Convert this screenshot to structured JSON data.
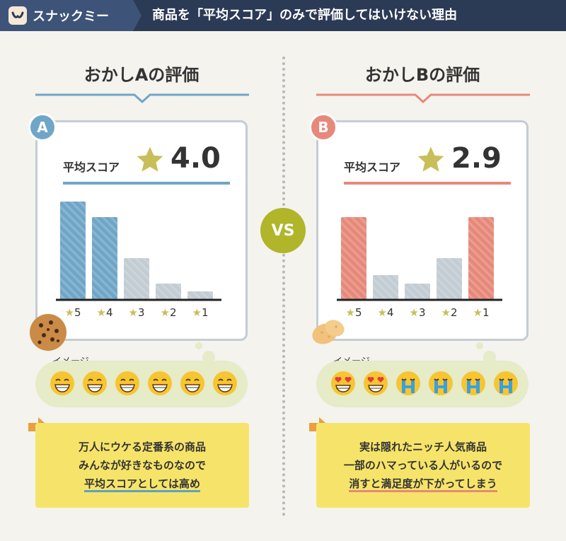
{
  "header": {
    "brand": "スナックミー",
    "title": "商品を「平均スコア」のみで評価してはいけない理由"
  },
  "colors": {
    "a": "#6fa6c8",
    "b": "#e7897a",
    "gray": "#c2ccd3",
    "star": "#c8bf5a",
    "vs": "#b0b52a"
  },
  "vs_label": "VS",
  "bubble_label": "イメージ",
  "panels": [
    {
      "title": "おかしAの評価",
      "badge": "A",
      "score_label": "平均スコア",
      "score": "4.0",
      "note": [
        "万人にウケる定番系の商品",
        "みんなが好きなものなので",
        "平均スコアとしては高め"
      ],
      "faces": [
        "grin",
        "grin",
        "grin",
        "grin",
        "grin",
        "grin"
      ]
    },
    {
      "title": "おかしBの評価",
      "badge": "B",
      "score_label": "平均スコア",
      "score": "2.9",
      "note": [
        "実は隠れたニッチ人気商品",
        "一部のハマっている人がいるので",
        "消すと満足度が下がってしまう"
      ],
      "faces": [
        "heart",
        "heart",
        "crying",
        "crying",
        "crying",
        "crying"
      ]
    }
  ],
  "chart_data": [
    {
      "type": "bar",
      "categories": [
        "★5",
        "★4",
        "★3",
        "★2",
        "★1"
      ],
      "values": [
        138,
        116,
        58,
        22,
        11
      ],
      "highlight": [
        true,
        true,
        false,
        false,
        false
      ]
    },
    {
      "type": "bar",
      "categories": [
        "★5",
        "★4",
        "★3",
        "★2",
        "★1"
      ],
      "values": [
        116,
        34,
        22,
        58,
        116
      ],
      "highlight": [
        true,
        false,
        false,
        false,
        true
      ]
    }
  ]
}
